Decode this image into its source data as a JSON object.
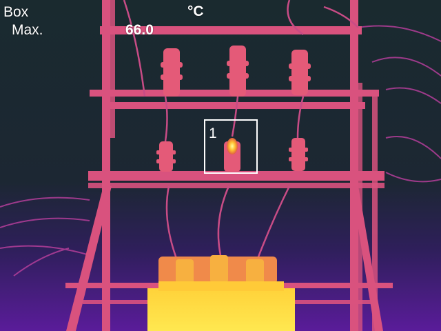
{
  "measurement": {
    "mode_label": "Box",
    "stat_label": "Max.",
    "value": "66.0",
    "unit": "°C"
  },
  "roi": {
    "number": "1"
  },
  "palette": {
    "background_cold": "#1b2a2f",
    "background_warm": "#4a1c8c",
    "structure": "#d7507c",
    "warm": "#f0a040",
    "hot": "#ffee66"
  }
}
